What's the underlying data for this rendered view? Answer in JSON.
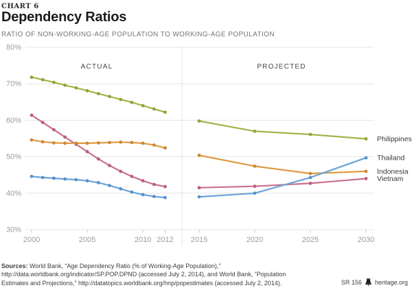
{
  "header": {
    "kicker": "CHART 6",
    "title": "Dependency Ratios",
    "subtitle": "RATIO OF NON-WORKING-AGE POPULATION TO WORKING-AGE POPULATION"
  },
  "chart_data": {
    "type": "line",
    "title": "Dependency Ratios",
    "subtitle": "RATIO OF NON-WORKING-AGE POPULATION TO WORKING-AGE POPULATION",
    "ylim": [
      30,
      80
    ],
    "yticks": [
      80,
      70,
      60,
      50,
      40,
      30
    ],
    "ytick_labels": [
      "80%",
      "70%",
      "60%",
      "50%",
      "40%",
      "30%"
    ],
    "grid": "horizontal",
    "legend_position": "right-of-line-ends",
    "sections": [
      {
        "label": "ACTUAL",
        "ticks": [
          2000,
          2005,
          2010,
          2012
        ]
      },
      {
        "label": "PROJECTED",
        "ticks": [
          2015,
          2020,
          2025,
          2030
        ]
      }
    ],
    "series": [
      {
        "name": "Philippines",
        "color": "#9FB648",
        "marker_color": "#8DA53A",
        "actual_x": [
          2000,
          2001,
          2002,
          2003,
          2004,
          2005,
          2006,
          2007,
          2008,
          2009,
          2010,
          2011,
          2012
        ],
        "actual_y": [
          71.8,
          71.1,
          70.4,
          69.6,
          68.9,
          68.1,
          67.3,
          66.5,
          65.7,
          64.9,
          64.0,
          63.1,
          62.2
        ],
        "projected_x": [
          2015,
          2020,
          2025,
          2030
        ],
        "projected_y": [
          59.8,
          57.0,
          56.1,
          54.9
        ]
      },
      {
        "name": "Vietnam",
        "color": "#C9708D",
        "marker_color": "#B95F7E",
        "actual_x": [
          2000,
          2001,
          2002,
          2003,
          2004,
          2005,
          2006,
          2007,
          2008,
          2009,
          2010,
          2011,
          2012
        ],
        "actual_y": [
          61.4,
          59.4,
          57.4,
          55.4,
          53.4,
          51.4,
          49.4,
          47.6,
          46.0,
          44.6,
          43.4,
          42.4,
          41.8
        ],
        "projected_x": [
          2015,
          2020,
          2025,
          2030
        ],
        "projected_y": [
          41.5,
          41.9,
          42.7,
          44.0
        ]
      },
      {
        "name": "Indonesia",
        "color": "#E09A44",
        "marker_color": "#CE8831",
        "actual_x": [
          2000,
          2001,
          2002,
          2003,
          2004,
          2005,
          2006,
          2007,
          2008,
          2009,
          2010,
          2011,
          2012
        ],
        "actual_y": [
          54.6,
          54.1,
          53.8,
          53.7,
          53.7,
          53.7,
          53.8,
          53.9,
          54.0,
          53.9,
          53.7,
          53.2,
          52.4
        ],
        "projected_x": [
          2015,
          2020,
          2025,
          2030
        ],
        "projected_y": [
          50.4,
          47.4,
          45.4,
          46.0
        ]
      },
      {
        "name": "Thailand",
        "color": "#69A3D8",
        "marker_color": "#5592CC",
        "actual_x": [
          2000,
          2001,
          2002,
          2003,
          2004,
          2005,
          2006,
          2007,
          2008,
          2009,
          2010,
          2011,
          2012
        ],
        "actual_y": [
          44.6,
          44.3,
          44.1,
          43.9,
          43.7,
          43.4,
          42.9,
          42.1,
          41.2,
          40.3,
          39.6,
          39.1,
          38.8
        ],
        "projected_x": [
          2015,
          2020,
          2025,
          2030
        ],
        "projected_y": [
          39.0,
          40.0,
          44.3,
          49.7
        ]
      }
    ]
  },
  "footer": {
    "sources_label": "Sources:",
    "lines": [
      " World Bank, “Age Dependency Ratio (% of Working-Age Population),”",
      "http://data.worldbank.org/indicator/SP.POP.DPND (accessed July 2, 2014), and World Bank, “Population",
      "Estimates and Projections,” http://datatopics.worldbank.org/hnp/popestimates (accessed July 2, 2014)."
    ],
    "report_id": "SR 156",
    "site": "heritage.org"
  }
}
